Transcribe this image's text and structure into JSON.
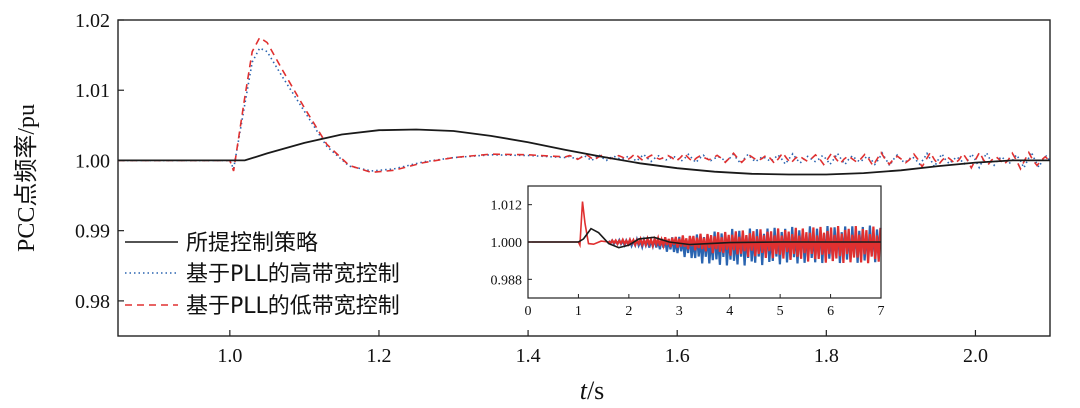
{
  "chart_data": [
    {
      "type": "line",
      "name": "main",
      "xlabel_italic": "t",
      "xlabel_unit": "/s",
      "ylabel": "PCC点频率/pu",
      "xlim": [
        0.85,
        2.1
      ],
      "ylim": [
        0.975,
        1.02
      ],
      "xticks": [
        1.0,
        1.2,
        1.4,
        1.6,
        1.8,
        2.0
      ],
      "xtick_labels": [
        "1.0",
        "1.2",
        "1.4",
        "1.6",
        "1.8",
        "2.0"
      ],
      "yticks": [
        0.98,
        0.99,
        1.0,
        1.01,
        1.02
      ],
      "ytick_labels": [
        "0.98",
        "0.99",
        "1.00",
        "1.01",
        "1.02"
      ],
      "legend_position": "left",
      "series": [
        {
          "name": "所提控制策略",
          "color": "#1a1a1a",
          "style": "solid",
          "x": [
            0.85,
            1.0,
            1.02,
            1.05,
            1.1,
            1.15,
            1.2,
            1.25,
            1.3,
            1.35,
            1.4,
            1.45,
            1.5,
            1.55,
            1.6,
            1.65,
            1.7,
            1.75,
            1.8,
            1.85,
            1.9,
            1.95,
            2.0,
            2.05,
            2.1
          ],
          "y": [
            1.0,
            1.0,
            1.0,
            1.001,
            1.0025,
            1.0037,
            1.0043,
            1.0044,
            1.0042,
            1.0035,
            1.0026,
            1.0015,
            1.0005,
            0.9996,
            0.9989,
            0.9984,
            0.9981,
            0.998,
            0.998,
            0.9982,
            0.9986,
            0.9992,
            0.9997,
            1.0,
            1.0
          ]
        },
        {
          "name": "基于PLL的高带宽控制",
          "color": "#2a64b0",
          "style": "dotted",
          "x": [
            0.85,
            1.0,
            1.005,
            1.02,
            1.03,
            1.04,
            1.05,
            1.07,
            1.1,
            1.13,
            1.16,
            1.19,
            1.22,
            1.26,
            1.3,
            1.35,
            1.4,
            1.45
          ],
          "y": [
            1.0,
            1.0,
            0.9988,
            1.008,
            1.014,
            1.016,
            1.0155,
            1.012,
            1.007,
            1.002,
            0.9992,
            0.9985,
            0.9988,
            0.9998,
            1.0004,
            1.0008,
            1.0007,
            1.0004
          ],
          "oscillation": {
            "from": 1.45,
            "to": 2.1,
            "period": 0.02,
            "amp_start": 0.0004,
            "amp_end": 0.0012
          }
        },
        {
          "name": "基于PLL的低带宽控制",
          "color": "#e03030",
          "style": "dashed",
          "x": [
            0.85,
            1.0,
            1.005,
            1.02,
            1.03,
            1.04,
            1.05,
            1.07,
            1.1,
            1.13,
            1.16,
            1.19,
            1.22,
            1.26,
            1.3,
            1.35,
            1.4,
            1.45
          ],
          "y": [
            1.0,
            1.0,
            0.9985,
            1.009,
            1.0155,
            1.0175,
            1.0168,
            1.013,
            1.0075,
            1.0023,
            0.9993,
            0.9983,
            0.9986,
            0.9997,
            1.0004,
            1.0009,
            1.0008,
            1.0005
          ],
          "oscillation": {
            "from": 1.45,
            "to": 2.1,
            "period": 0.022,
            "amp_start": 0.0004,
            "amp_end": 0.0013
          }
        }
      ]
    },
    {
      "type": "line",
      "name": "inset",
      "xlim": [
        0,
        7
      ],
      "ylim": [
        0.982,
        1.018
      ],
      "xticks": [
        0,
        1,
        2,
        3,
        4,
        5,
        6,
        7
      ],
      "xtick_labels": [
        "0",
        "1",
        "2",
        "3",
        "4",
        "5",
        "6",
        "7"
      ],
      "yticks": [
        0.988,
        1.0,
        1.012
      ],
      "ytick_labels": [
        "0.988",
        "1.000",
        "1.012"
      ],
      "bands": [
        {
          "name": "基于PLL的高带宽控制",
          "color": "#2a64b0",
          "x": [
            1.6,
            2.5,
            3.0,
            3.5,
            4.0,
            5.0,
            6.0,
            7.0
          ],
          "amp": [
            0.0005,
            0.0015,
            0.003,
            0.005,
            0.006,
            0.006,
            0.006,
            0.006
          ],
          "offset": [
            0,
            -0.0005,
            -0.0012,
            -0.0022,
            -0.0018,
            -0.0012,
            -0.0008,
            -0.0006
          ]
        },
        {
          "name": "基于PLL的低带宽控制",
          "color": "#e03030",
          "x": [
            1.6,
            2.5,
            3.0,
            3.5,
            4.0,
            5.0,
            6.0,
            7.0
          ],
          "amp": [
            0.0005,
            0.0012,
            0.002,
            0.003,
            0.004,
            0.005,
            0.006,
            0.006
          ],
          "offset": [
            0,
            0,
            0,
            -0.0002,
            -0.0004,
            -0.0006,
            -0.0008,
            -0.001
          ]
        }
      ],
      "series": [
        {
          "name": "基于PLL的低带宽控制",
          "color": "#e03030",
          "x": [
            0,
            1.0,
            1.03,
            1.08,
            1.13,
            1.2,
            1.3,
            1.45,
            1.6
          ],
          "y": [
            1.0,
            1.0,
            0.999,
            1.013,
            1.006,
            0.9995,
            0.9993,
            1.0003,
            1.0
          ]
        },
        {
          "name": "所提控制策略",
          "color": "#1a1a1a",
          "x": [
            0,
            1.0,
            1.1,
            1.25,
            1.4,
            1.6,
            1.8,
            2.0,
            2.2,
            2.5,
            2.8,
            3.2,
            3.6,
            4.0,
            5.0,
            6.0,
            7.0
          ],
          "y": [
            1.0,
            1.0,
            1.001,
            1.0043,
            1.003,
            0.9995,
            0.9982,
            0.999,
            1.001,
            1.0015,
            1.0,
            0.9992,
            0.9995,
            0.9998,
            1.0,
            1.0,
            1.0
          ]
        }
      ]
    }
  ]
}
